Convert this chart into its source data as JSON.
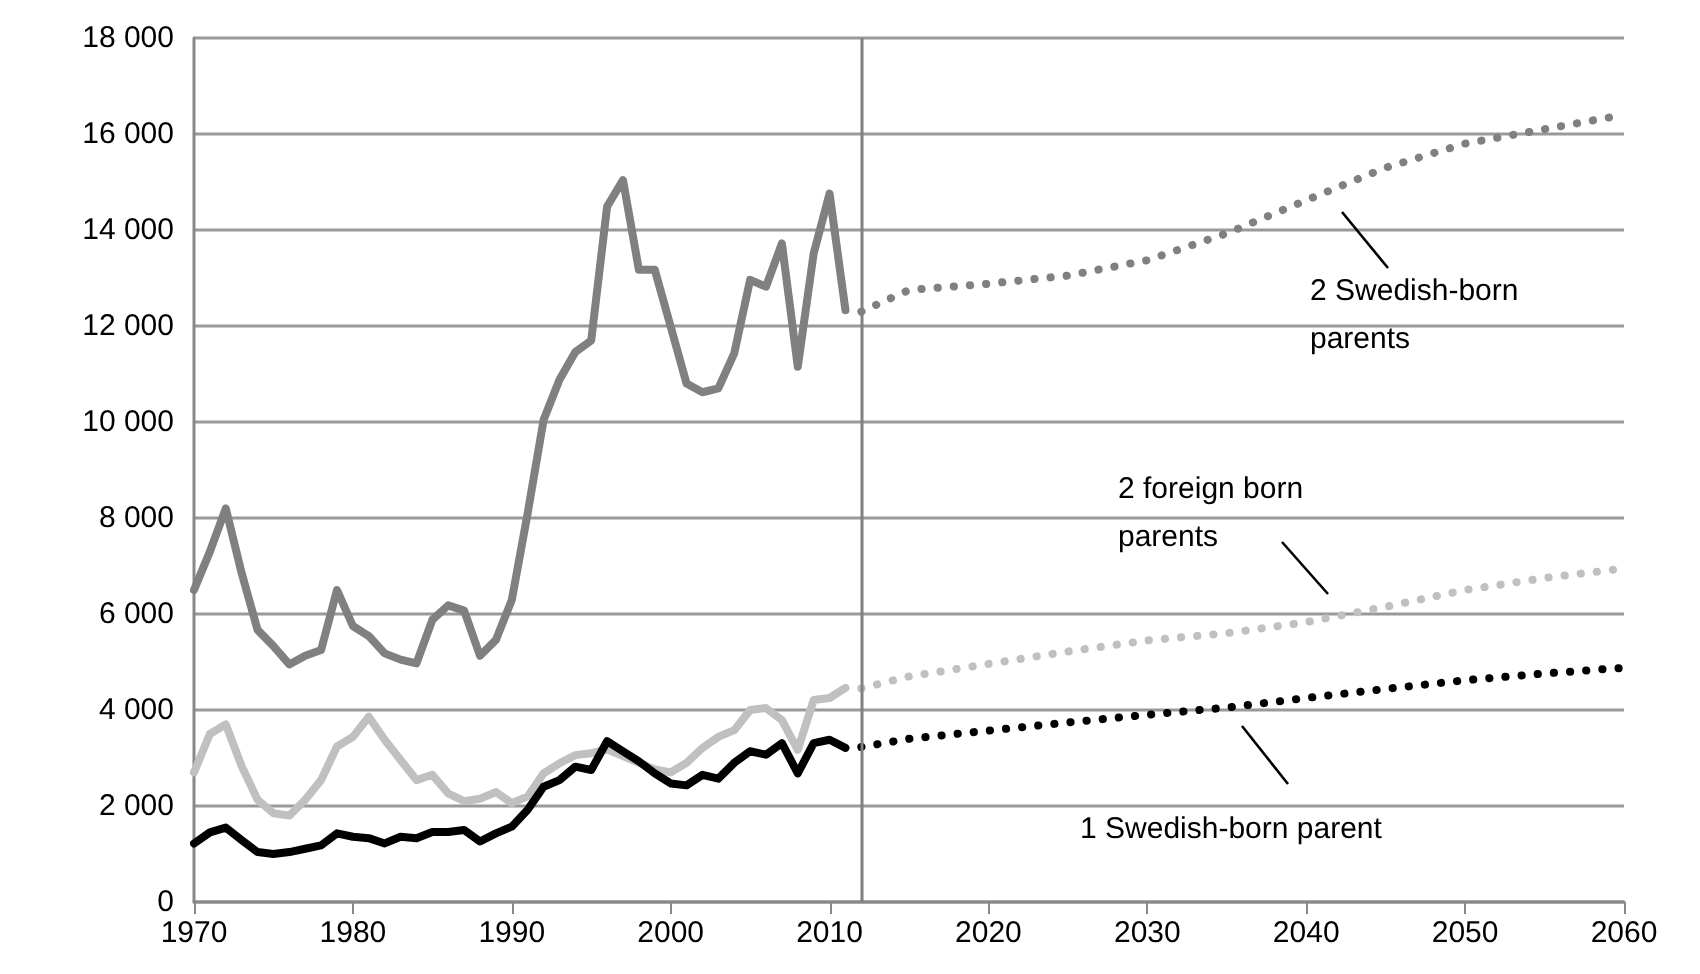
{
  "chart_data": {
    "type": "line",
    "marker": "none",
    "grid": "y",
    "xlim": [
      1970,
      2060
    ],
    "xticks": [
      1970,
      1980,
      1990,
      2000,
      2010,
      2020,
      2030,
      2040,
      2050,
      2060
    ],
    "ylim": [
      0,
      18000
    ],
    "yticks": [
      0,
      {
        "value": 2000,
        "label": "2 000"
      },
      {
        "value": 4000,
        "label": "4 000"
      },
      {
        "value": 6000,
        "label": "6 000"
      },
      {
        "value": 8000,
        "label": "8 000"
      },
      {
        "value": 10000,
        "label": "10 000"
      },
      {
        "value": 12000,
        "label": "12 000"
      },
      {
        "value": 14000,
        "label": "14 000"
      },
      {
        "value": 16000,
        "label": "16 000"
      },
      {
        "value": 18000,
        "label": "18 000"
      }
    ],
    "ref_lines": [
      {
        "axis": "x",
        "value": 2012,
        "color": "#808080"
      }
    ],
    "series": [
      {
        "color": "#808080",
        "line_style": "solid",
        "x": [
          1970,
          1971,
          1972,
          1973,
          1974,
          1975,
          1976,
          1977,
          1978,
          1979,
          1980,
          1981,
          1982,
          1983,
          1984,
          1985,
          1986,
          1987,
          1988,
          1989,
          1990,
          1991,
          1992,
          1993,
          1994,
          1995,
          1996,
          1997,
          1998,
          1999,
          2000,
          2001,
          2002,
          2003,
          2004,
          2005,
          2006,
          2007,
          2008,
          2009,
          2010,
          2011
        ],
        "values": [
          6500,
          7300,
          8200,
          6850,
          5670,
          5330,
          4950,
          5130,
          5250,
          6500,
          5750,
          5540,
          5180,
          5050,
          4970,
          5880,
          6180,
          6070,
          5130,
          5460,
          6290,
          8100,
          10040,
          10880,
          11460,
          11700,
          14490,
          15040,
          13170,
          13170,
          11990,
          10800,
          10620,
          10700,
          11430,
          12960,
          12820,
          13720,
          11150,
          13510,
          14760,
          12330
        ]
      },
      {
        "color": "#c0c0c0",
        "line_style": "solid",
        "x": [
          1970,
          1971,
          1972,
          1973,
          1974,
          1975,
          1976,
          1977,
          1978,
          1979,
          1980,
          1981,
          1982,
          1983,
          1984,
          1985,
          1986,
          1987,
          1988,
          1989,
          1990,
          1991,
          1992,
          1993,
          1994,
          1995,
          1996,
          1997,
          1998,
          1999,
          2000,
          2001,
          2002,
          2003,
          2004,
          2005,
          2006,
          2007,
          2008,
          2009,
          2010,
          2011
        ],
        "values": [
          2700,
          3500,
          3700,
          2830,
          2130,
          1850,
          1800,
          2130,
          2540,
          3240,
          3440,
          3860,
          3380,
          2960,
          2540,
          2650,
          2260,
          2100,
          2150,
          2290,
          2060,
          2200,
          2680,
          2890,
          3060,
          3100,
          3180,
          3040,
          2900,
          2760,
          2700,
          2900,
          3210,
          3440,
          3580,
          4000,
          4040,
          3790,
          3170,
          4210,
          4250,
          4460
        ]
      },
      {
        "color": "#000000",
        "line_style": "solid",
        "x": [
          1970,
          1971,
          1972,
          1973,
          1974,
          1975,
          1976,
          1977,
          1978,
          1979,
          1980,
          1981,
          1982,
          1983,
          1984,
          1985,
          1986,
          1987,
          1988,
          1989,
          1990,
          1991,
          1992,
          1993,
          1994,
          1995,
          1996,
          1997,
          1998,
          1999,
          2000,
          2001,
          2002,
          2003,
          2004,
          2005,
          2006,
          2007,
          2008,
          2009,
          2010,
          2011
        ],
        "values": [
          1220,
          1450,
          1550,
          1290,
          1040,
          1000,
          1040,
          1110,
          1180,
          1430,
          1360,
          1330,
          1220,
          1360,
          1330,
          1460,
          1460,
          1500,
          1260,
          1430,
          1570,
          1920,
          2400,
          2540,
          2820,
          2750,
          3350,
          3140,
          2930,
          2680,
          2470,
          2430,
          2650,
          2570,
          2900,
          3140,
          3070,
          3310,
          2680,
          3310,
          3380,
          3210
        ]
      },
      {
        "color": "#808080",
        "line_style": "dotted",
        "x": [
          2012,
          2015,
          2020,
          2025,
          2030,
          2035,
          2040,
          2045,
          2050,
          2055,
          2060
        ],
        "values": [
          12300,
          12750,
          12880,
          13050,
          13370,
          13930,
          14620,
          15300,
          15800,
          16100,
          16400
        ]
      },
      {
        "color": "#c0c0c0",
        "line_style": "dotted",
        "x": [
          2012,
          2015,
          2020,
          2025,
          2030,
          2035,
          2040,
          2045,
          2050,
          2055,
          2060
        ],
        "values": [
          4450,
          4700,
          4960,
          5220,
          5450,
          5600,
          5830,
          6150,
          6500,
          6750,
          6950
        ]
      },
      {
        "color": "#000000",
        "line_style": "dotted",
        "x": [
          2012,
          2015,
          2020,
          2025,
          2030,
          2035,
          2040,
          2045,
          2050,
          2055,
          2060
        ],
        "values": [
          3230,
          3400,
          3570,
          3740,
          3900,
          4050,
          4250,
          4440,
          4620,
          4760,
          4880
        ]
      }
    ],
    "annotations": [
      "2 Swedish-born parents",
      "2 foreign born parents",
      "1 Swedish-born parent"
    ]
  }
}
